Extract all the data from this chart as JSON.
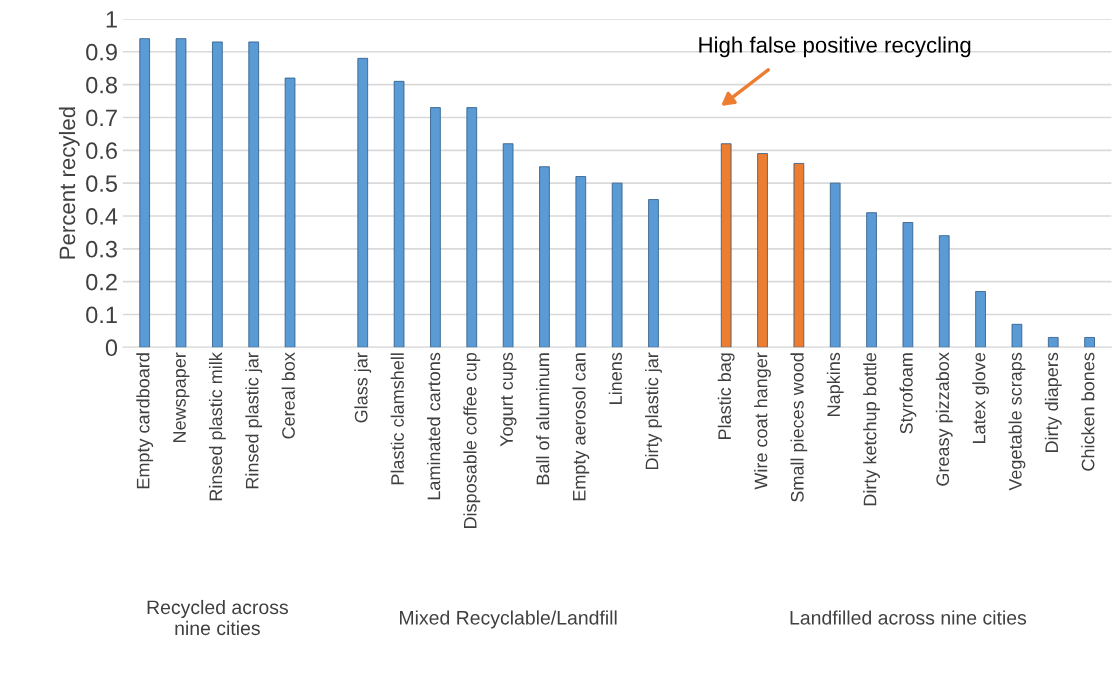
{
  "chart_data": {
    "type": "bar",
    "ylabel": "Percent recyled",
    "categories": [
      "Empty cardboard",
      "Newspaper",
      "Rinsed plastic milk",
      "Rinsed plastic jar",
      "Cereal box",
      null,
      "Glass jar",
      "Plastic clamshell",
      "Laminated cartons",
      "Disposable coffee cup",
      "Yogurt cups",
      "Ball of aluminum",
      "Empty aerosol can",
      "Linens",
      "Dirty plastic jar",
      null,
      "Plastic bag",
      "Wire coat hanger",
      "Small pieces wood",
      "Napkins",
      "Dirty ketchup bottle",
      "Styrofoam",
      "Greasy pizzabox",
      "Latex glove",
      "Vegetable scraps",
      "Dirty diapers",
      "Chicken bones"
    ],
    "values": [
      0.94,
      0.94,
      0.93,
      0.93,
      0.82,
      null,
      0.88,
      0.81,
      0.73,
      0.73,
      0.62,
      0.55,
      0.52,
      0.5,
      0.45,
      null,
      0.62,
      0.59,
      0.56,
      0.5,
      0.41,
      0.38,
      0.34,
      0.17,
      0.07,
      0.03,
      0.03
    ],
    "colors": [
      "#5b9bd5",
      "#5b9bd5",
      "#5b9bd5",
      "#5b9bd5",
      "#5b9bd5",
      null,
      "#5b9bd5",
      "#5b9bd5",
      "#5b9bd5",
      "#5b9bd5",
      "#5b9bd5",
      "#5b9bd5",
      "#5b9bd5",
      "#5b9bd5",
      "#5b9bd5",
      null,
      "#ed7d31",
      "#ed7d31",
      "#ed7d31",
      "#5b9bd5",
      "#5b9bd5",
      "#5b9bd5",
      "#5b9bd5",
      "#5b9bd5",
      "#5b9bd5",
      "#5b9bd5",
      "#5b9bd5"
    ],
    "ylim": [
      0,
      1
    ],
    "yticks": [
      0,
      0.1,
      0.2,
      0.3,
      0.4,
      0.5,
      0.6,
      0.7,
      0.8,
      0.9,
      1
    ],
    "grid": "y",
    "annotations": [
      "High false positive recycling",
      "Recycled across\nnine cities",
      "Mixed Recyclable/Landfill",
      "Landfilled across nine cities"
    ]
  }
}
